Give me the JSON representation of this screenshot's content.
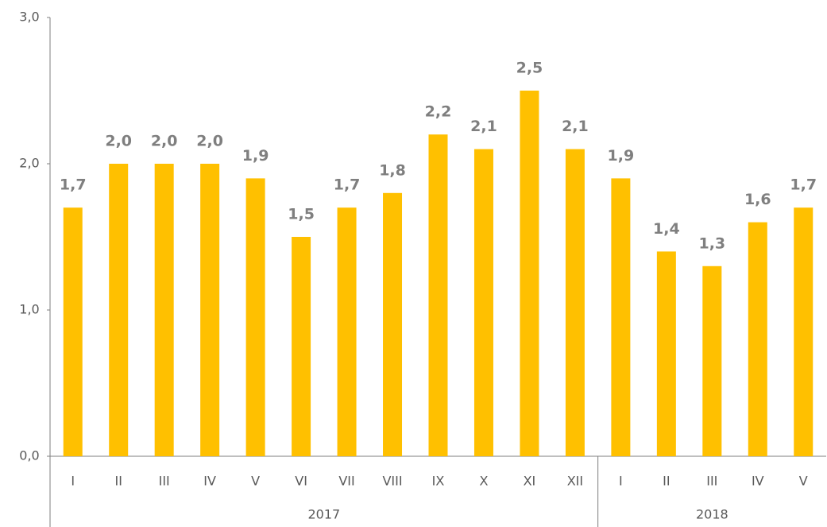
{
  "chart_data": {
    "type": "bar",
    "categories": [
      "I",
      "II",
      "III",
      "IV",
      "V",
      "VI",
      "VII",
      "VIII",
      "IX",
      "X",
      "XI",
      "XII",
      "I",
      "II",
      "III",
      "IV",
      "V"
    ],
    "groups": [
      {
        "label": "2017",
        "size": 12
      },
      {
        "label": "2018",
        "size": 5
      }
    ],
    "values": [
      1.7,
      2.0,
      2.0,
      2.0,
      1.9,
      1.5,
      1.7,
      1.8,
      2.2,
      2.1,
      2.5,
      2.1,
      1.9,
      1.4,
      1.3,
      1.6,
      1.7
    ],
    "value_labels": [
      "1,7",
      "2,0",
      "2,0",
      "2,0",
      "1,9",
      "1,5",
      "1,7",
      "1,8",
      "2,2",
      "2,1",
      "2,5",
      "2,1",
      "1,9",
      "1,4",
      "1,3",
      "1,6",
      "1,7"
    ],
    "color": "#ffc000",
    "ylim": [
      0,
      3
    ],
    "yticks": [
      {
        "value": 0,
        "label": "0,0"
      },
      {
        "value": 1,
        "label": "1,0"
      },
      {
        "value": 2,
        "label": "2,0"
      },
      {
        "value": 3,
        "label": "3,0"
      }
    ]
  }
}
